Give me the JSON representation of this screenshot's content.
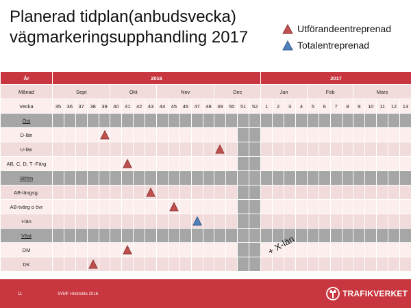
{
  "slide": {
    "title_line1": "Planerad tidplan(anbudsvecka)",
    "title_line2": "vägmarkeringsupphandling 2017"
  },
  "legend": {
    "items": [
      {
        "label": "Utförandeentreprenad",
        "color": "#c0504d"
      },
      {
        "label": "Totalentreprenad",
        "color": "#4f81bd"
      }
    ]
  },
  "table": {
    "year_label": "År",
    "years": [
      "2016",
      "2017"
    ],
    "month_label": "Månad",
    "months": [
      "Sept",
      "Okt",
      "Nov",
      "Dec",
      "Jan",
      "Feb",
      "Mars"
    ],
    "week_label": "Vecka",
    "weeks": [
      "35",
      "36",
      "37",
      "38",
      "39",
      "40",
      "41",
      "42",
      "43",
      "44",
      "45",
      "46",
      "47",
      "48",
      "49",
      "50",
      "51",
      "52",
      "1",
      "2",
      "3",
      "4",
      "5",
      "6",
      "7",
      "8",
      "9",
      "10",
      "11",
      "12",
      "13"
    ],
    "rows": [
      {
        "type": "region",
        "label": "Öst"
      },
      {
        "type": "item",
        "label": "D-län",
        "week": "39",
        "marker": "Utförandeentreprenad"
      },
      {
        "type": "item",
        "label": "U-län",
        "week": "49",
        "marker": "Utförandeentreprenad"
      },
      {
        "type": "item",
        "label": "AB, C, D, T -Färg",
        "week": "41",
        "marker": "Utförandeentreprenad"
      },
      {
        "type": "region",
        "label": "Sthlm"
      },
      {
        "type": "item",
        "label": "AB-längsg.",
        "week": "43",
        "marker": "Utförandeentreprenad"
      },
      {
        "type": "item",
        "label": "AB-tvärg o övr",
        "week": "45",
        "marker": "Utförandeentreprenad"
      },
      {
        "type": "item",
        "label": "I-län",
        "week": "47",
        "marker": "Totalentreprenad"
      },
      {
        "type": "region",
        "label": "Väst"
      },
      {
        "type": "item",
        "label": "DM",
        "week": "41",
        "marker": "Utförandeentreprenad"
      },
      {
        "type": "item",
        "label": "DK",
        "week": "38",
        "marker": "Utförandeentreprenad"
      }
    ],
    "dec_highlight_weeks": [
      "51",
      "52"
    ]
  },
  "annotation": "+ X-län",
  "footer": {
    "page_number": "11",
    "event": "SVMF Höstmöte 2016",
    "logo_text": "TRAFIKVERKET",
    "logo_icon": "trafikverket-crown-icon"
  }
}
